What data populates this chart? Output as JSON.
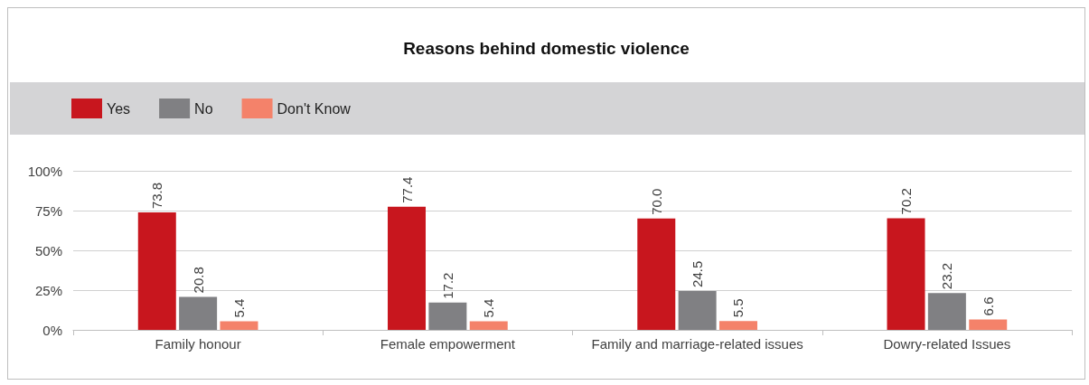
{
  "chart_data": {
    "type": "bar",
    "title": "Reasons behind domestic violence",
    "categories": [
      "Family honour",
      "Female empowerment",
      "Family and marriage-related issues",
      "Dowry-related Issues"
    ],
    "series": [
      {
        "name": "Yes",
        "color": "#c8161e",
        "values": [
          73.8,
          77.4,
          70.0,
          70.2
        ],
        "value_labels": [
          "73.8",
          "77.4",
          "70.0",
          "70.2"
        ]
      },
      {
        "name": "No",
        "color": "#808083",
        "values": [
          20.8,
          17.2,
          24.5,
          23.2
        ],
        "value_labels": [
          "20.8",
          "17.2",
          "24.5",
          "23.2"
        ]
      },
      {
        "name": "Don't Know",
        "color": "#f4826a",
        "values": [
          5.4,
          5.4,
          5.5,
          6.6
        ],
        "value_labels": [
          "5.4",
          "5.4",
          "5.5",
          "6.6"
        ]
      }
    ],
    "ylim": [
      0,
      100
    ],
    "yticks": [
      {
        "value": 0,
        "label": "0%"
      },
      {
        "value": 25,
        "label": "25%"
      },
      {
        "value": 50,
        "label": "50%"
      },
      {
        "value": 75,
        "label": "75%"
      },
      {
        "value": 100,
        "label": "100%"
      }
    ],
    "grid": "y",
    "legend": "top left"
  }
}
